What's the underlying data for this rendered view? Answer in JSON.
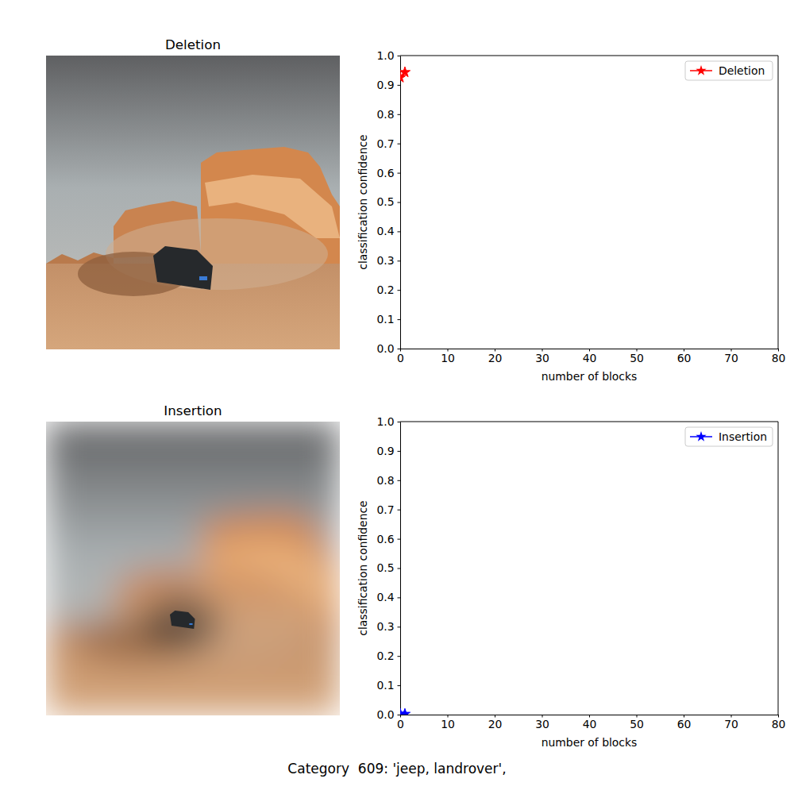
{
  "images": [
    {
      "title": "Deletion"
    },
    {
      "title": "Insertion"
    }
  ],
  "chart_data": [
    {
      "type": "line",
      "x_label": "number of blocks",
      "y_label": "classification confidence",
      "x": [
        0,
        1
      ],
      "series": [
        {
          "name": "Deletion",
          "color": "#ff0000",
          "marker": "star",
          "values": [
            0.925,
            0.943
          ]
        }
      ],
      "xlim": [
        0,
        80
      ],
      "xticks": [
        0,
        10,
        20,
        30,
        40,
        50,
        60,
        70,
        80
      ],
      "ylim": [
        0,
        1
      ],
      "yticks": [
        {
          "value": 0,
          "label": "0.0"
        },
        {
          "value": 0.1,
          "label": "0.1"
        },
        {
          "value": 0.2,
          "label": "0.2"
        },
        {
          "value": 0.3,
          "label": "0.3"
        },
        {
          "value": 0.4,
          "label": "0.4"
        },
        {
          "value": 0.5,
          "label": "0.5"
        },
        {
          "value": 0.6,
          "label": "0.6"
        },
        {
          "value": 0.7,
          "label": "0.7"
        },
        {
          "value": 0.8,
          "label": "0.8"
        },
        {
          "value": 0.9,
          "label": "0.9"
        },
        {
          "value": 1,
          "label": "1.0"
        }
      ],
      "legend": "upper right"
    },
    {
      "type": "line",
      "x_label": "number of blocks",
      "y_label": "classification confidence",
      "x": [
        0,
        1
      ],
      "series": [
        {
          "name": "Insertion",
          "color": "#0000ff",
          "marker": "star",
          "values": [
            0.003,
            0.002
          ]
        }
      ],
      "xlim": [
        0,
        80
      ],
      "xticks": [
        0,
        10,
        20,
        30,
        40,
        50,
        60,
        70,
        80
      ],
      "ylim": [
        0,
        1
      ],
      "yticks": [
        {
          "value": 0,
          "label": "0.0"
        },
        {
          "value": 0.1,
          "label": "0.1"
        },
        {
          "value": 0.2,
          "label": "0.2"
        },
        {
          "value": 0.3,
          "label": "0.3"
        },
        {
          "value": 0.4,
          "label": "0.4"
        },
        {
          "value": 0.5,
          "label": "0.5"
        },
        {
          "value": 0.6,
          "label": "0.6"
        },
        {
          "value": 0.7,
          "label": "0.7"
        },
        {
          "value": 0.8,
          "label": "0.8"
        },
        {
          "value": 0.9,
          "label": "0.9"
        },
        {
          "value": 1,
          "label": "1.0"
        }
      ],
      "legend": "upper right"
    }
  ],
  "caption": "Category  609: 'jeep, landrover',"
}
